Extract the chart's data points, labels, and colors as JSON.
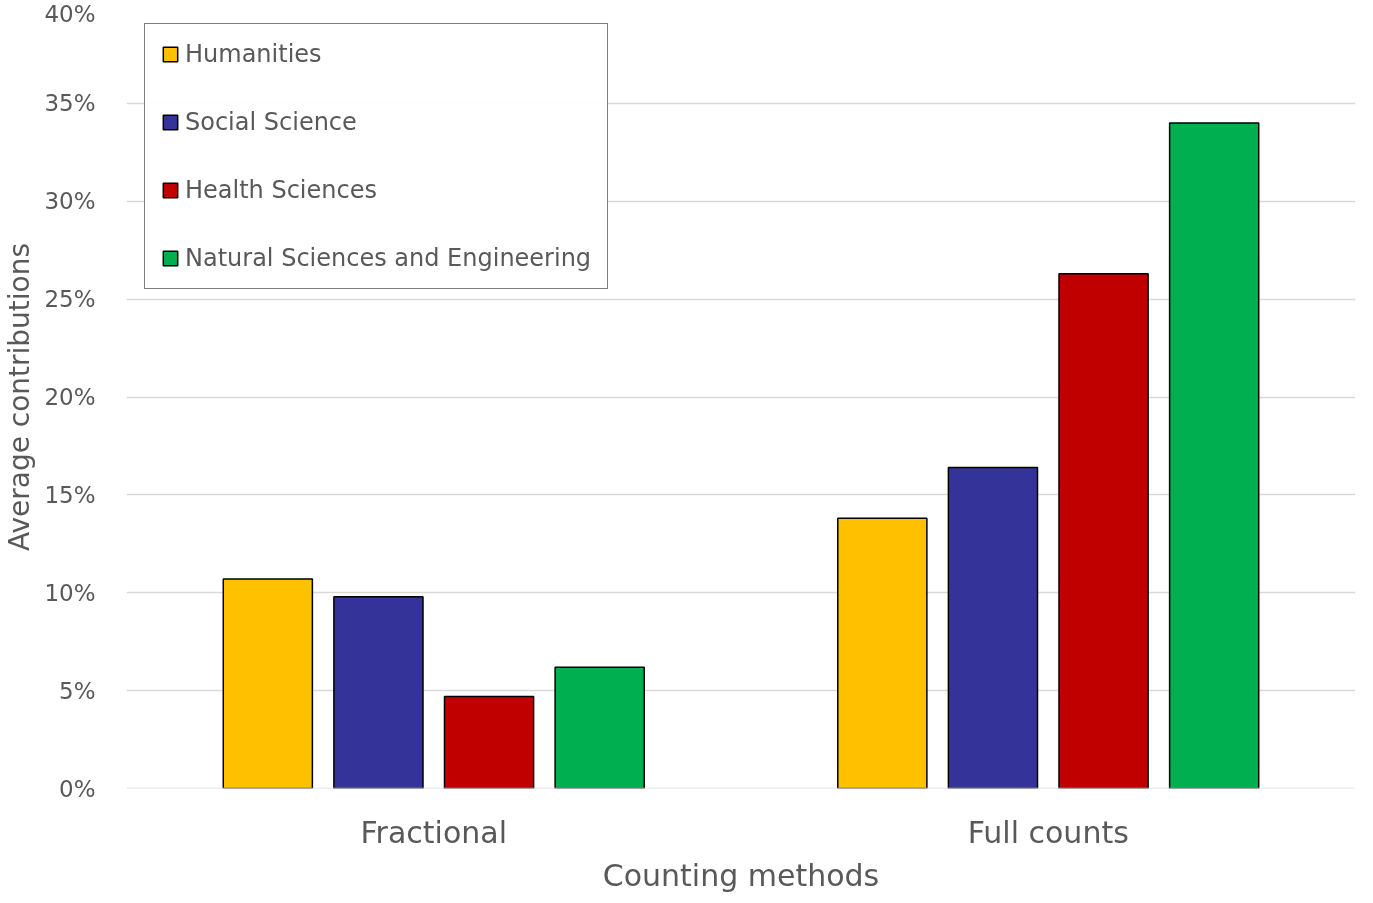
{
  "chart_data": {
    "type": "bar",
    "xlabel": "Counting methods",
    "ylabel": "Average contributions",
    "categories": [
      "Fractional",
      "Full counts"
    ],
    "series": [
      {
        "name": "Humanities",
        "color": "#ffc000",
        "values": [
          10.7,
          13.8
        ]
      },
      {
        "name": "Social Science",
        "color": "#333399",
        "values": [
          9.8,
          16.4
        ]
      },
      {
        "name": "Health Sciences",
        "color": "#c00000",
        "values": [
          4.7,
          26.3
        ]
      },
      {
        "name": "Natural Sciences and Engineering",
        "color": "#00b050",
        "values": [
          6.2,
          34.0
        ]
      }
    ],
    "ylim": [
      0,
      40
    ],
    "yticks": [
      {
        "value": 0,
        "label": "0%"
      },
      {
        "value": 5,
        "label": "5%"
      },
      {
        "value": 10,
        "label": "10%"
      },
      {
        "value": 15,
        "label": "15%"
      },
      {
        "value": 20,
        "label": "20%"
      },
      {
        "value": 25,
        "label": "25%"
      },
      {
        "value": 30,
        "label": "30%"
      },
      {
        "value": 35,
        "label": "35%"
      },
      {
        "value": 40,
        "label": "40%"
      }
    ],
    "grid": "y",
    "legend": "top left"
  }
}
